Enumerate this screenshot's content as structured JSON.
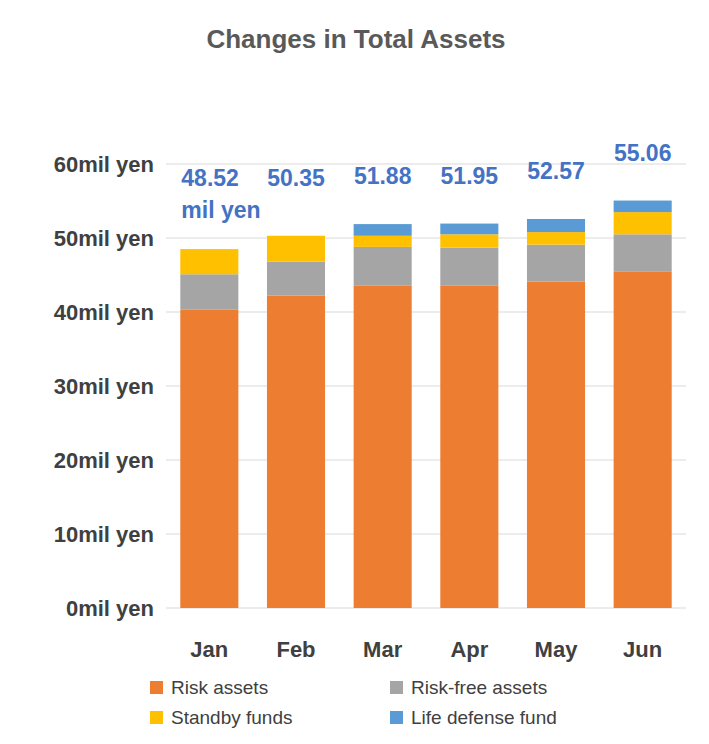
{
  "chart_data": {
    "type": "bar",
    "stacked": true,
    "title": "Changes in Total Assets",
    "categories": [
      "Jan",
      "Feb",
      "Mar",
      "Apr",
      "May",
      "Jun"
    ],
    "series": [
      {
        "name": "Risk assets",
        "color": "#ED7D31",
        "values": [
          40.3,
          42.2,
          43.6,
          43.6,
          44.1,
          45.5
        ]
      },
      {
        "name": "Risk-free assets",
        "color": "#A5A5A5",
        "values": [
          4.8,
          4.6,
          5.2,
          5.1,
          5.0,
          5.0
        ]
      },
      {
        "name": "Standby funds",
        "color": "#FFC000",
        "values": [
          3.4,
          3.5,
          1.5,
          1.8,
          1.7,
          3.0
        ]
      },
      {
        "name": "Life defense fund",
        "color": "#5B9BD5",
        "values": [
          0,
          0,
          1.58,
          1.45,
          1.77,
          1.56
        ]
      }
    ],
    "totals": [
      48.52,
      50.35,
      51.88,
      51.95,
      52.57,
      55.06
    ],
    "total_labels": [
      "48.52 mil yen",
      "50.35",
      "51.88",
      "51.95",
      "52.57",
      "55.06"
    ],
    "ylim": [
      0,
      60
    ],
    "yticks": [
      {
        "value": 0,
        "label": "0mil yen"
      },
      {
        "value": 10,
        "label": "10mil yen"
      },
      {
        "value": 20,
        "label": "20mil yen"
      },
      {
        "value": 30,
        "label": "30mil yen"
      },
      {
        "value": 40,
        "label": "40mil yen"
      },
      {
        "value": 50,
        "label": "50mil yen"
      },
      {
        "value": 60,
        "label": "60mil yen"
      }
    ],
    "grid": true,
    "legend": "bottom"
  }
}
